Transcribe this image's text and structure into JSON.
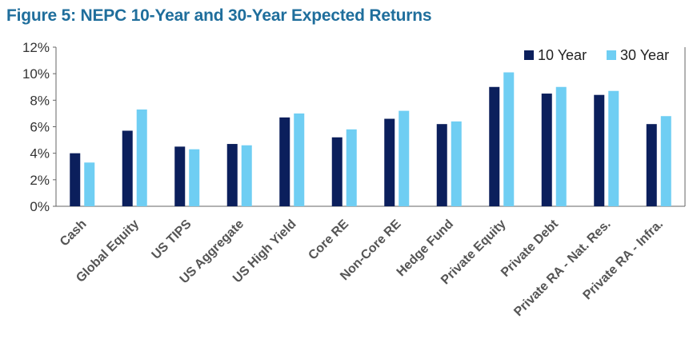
{
  "figure_title": "Figure 5: NEPC 10-Year and 30-Year Expected Returns",
  "chart_data": {
    "type": "bar",
    "title": "Figure 5: NEPC 10-Year and 30-Year Expected Returns",
    "xlabel": "",
    "ylabel": "",
    "categories": [
      "Cash",
      "Global Equity",
      "US TIPS",
      "US Aggregate",
      "US High Yield",
      "Core RE",
      "Non-Core RE",
      "Hedge Fund",
      "Private Equity",
      "Private Debt",
      "Private RA - Nat. Res.",
      "Private RA - Infra."
    ],
    "series": [
      {
        "name": "10 Year",
        "color": "#0b1f5c",
        "values": [
          4.0,
          5.7,
          4.5,
          4.7,
          6.7,
          5.2,
          6.6,
          6.2,
          9.0,
          8.5,
          8.4,
          6.2
        ]
      },
      {
        "name": "30 Year",
        "color": "#6fcef3",
        "values": [
          3.3,
          7.3,
          4.3,
          4.6,
          7.0,
          5.8,
          7.2,
          6.4,
          10.1,
          9.0,
          8.7,
          6.8
        ]
      }
    ],
    "ylim": [
      0,
      12
    ],
    "yticks": [
      "0%",
      "2%",
      "4%",
      "6%",
      "8%",
      "10%",
      "12%"
    ],
    "grid": false,
    "legend_position": "top-right"
  }
}
